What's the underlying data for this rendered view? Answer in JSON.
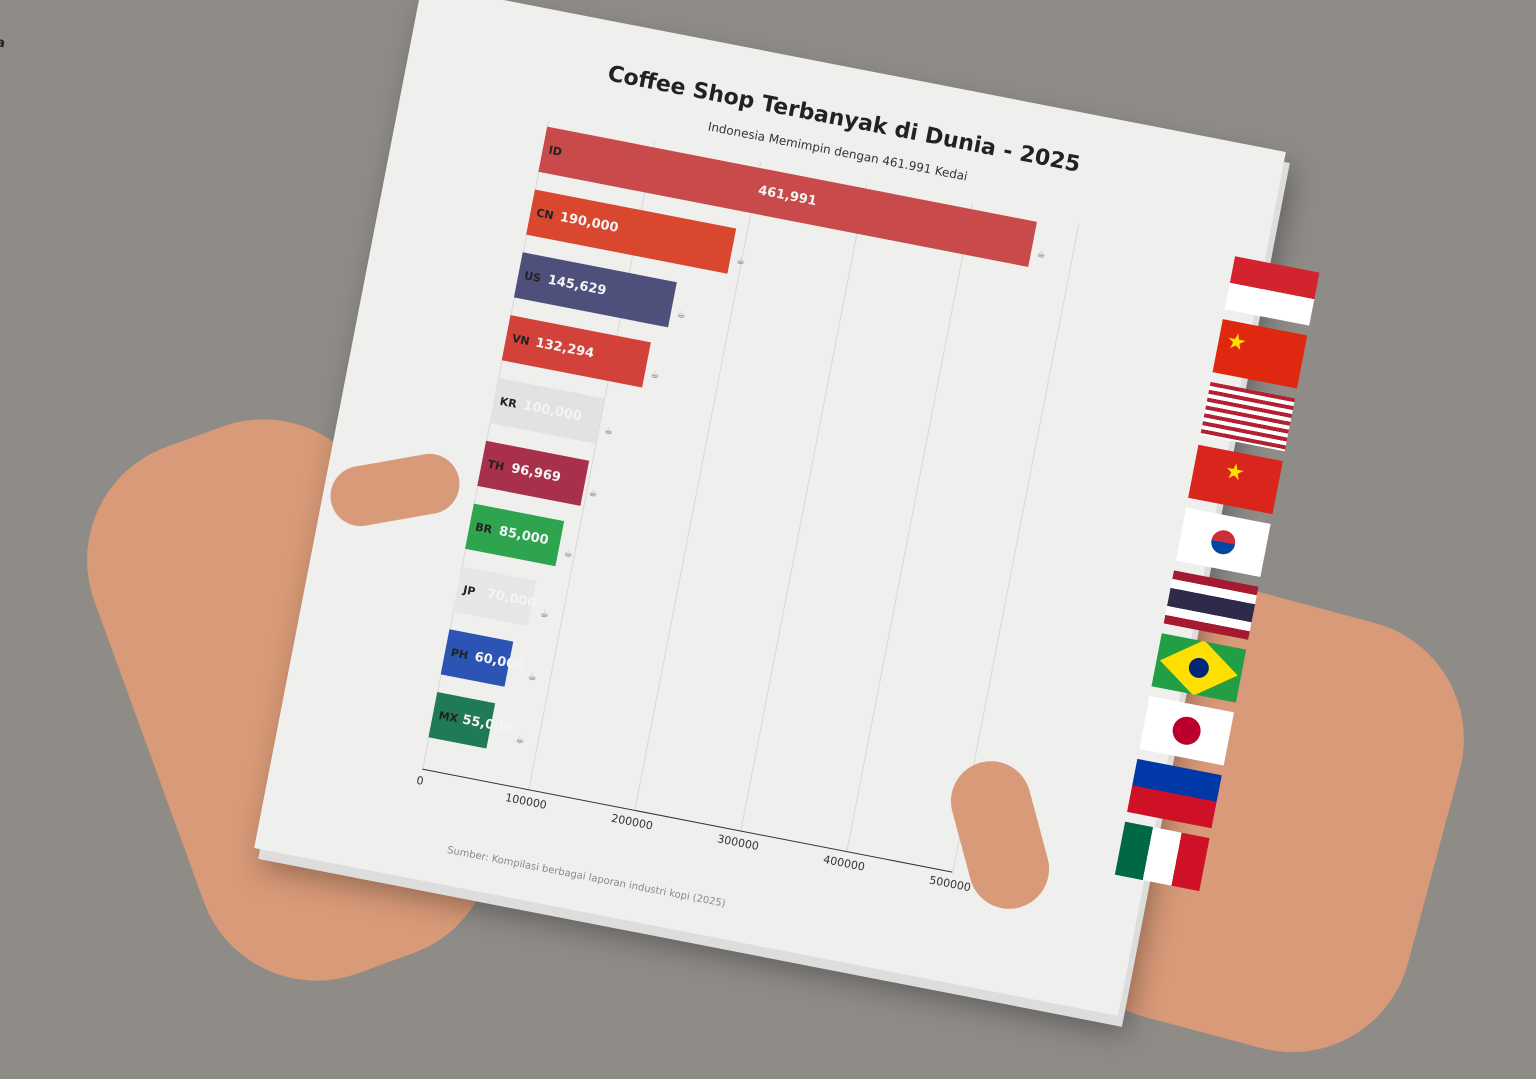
{
  "chart_data": {
    "type": "bar",
    "orientation": "horizontal",
    "title": "Coffee Shop Terbanyak di Dunia - 2025",
    "subtitle": "Indonesia Memimpin dengan 461.991 Kedai",
    "categories": [
      "Indonesia",
      "Tiongkok",
      "Amerika Serikat",
      "Vietnam",
      "Korea Selatan",
      "Thailand",
      "Brasil",
      "Jepang",
      "Filipina",
      "Meksiko"
    ],
    "codes": [
      "ID",
      "CN",
      "US",
      "VN",
      "KR",
      "TH",
      "BR",
      "JP",
      "PH",
      "MX"
    ],
    "values": [
      461991,
      190000,
      145629,
      132294,
      100000,
      96969,
      85000,
      70000,
      60000,
      55000
    ],
    "value_labels": [
      "461,991",
      "190,000",
      "145,629",
      "132,294",
      "100,000",
      "96,969",
      "85,000",
      "70,000",
      "60,000",
      "55,000"
    ],
    "colors": [
      "#c94a4a",
      "#d9472f",
      "#4f4f7c",
      "#d2423a",
      "#e2e2e2",
      "#a8304b",
      "#2ea44f",
      "#e6e6e6",
      "#2b54b5",
      "#1f7a55"
    ],
    "xlim": [
      0,
      500000
    ],
    "xticks": [
      "0",
      "100000",
      "200000",
      "300000",
      "400000",
      "500000"
    ],
    "grid": true,
    "source": "Sumber: Kompilasi berbagai laporan industri kopi (2025)"
  }
}
